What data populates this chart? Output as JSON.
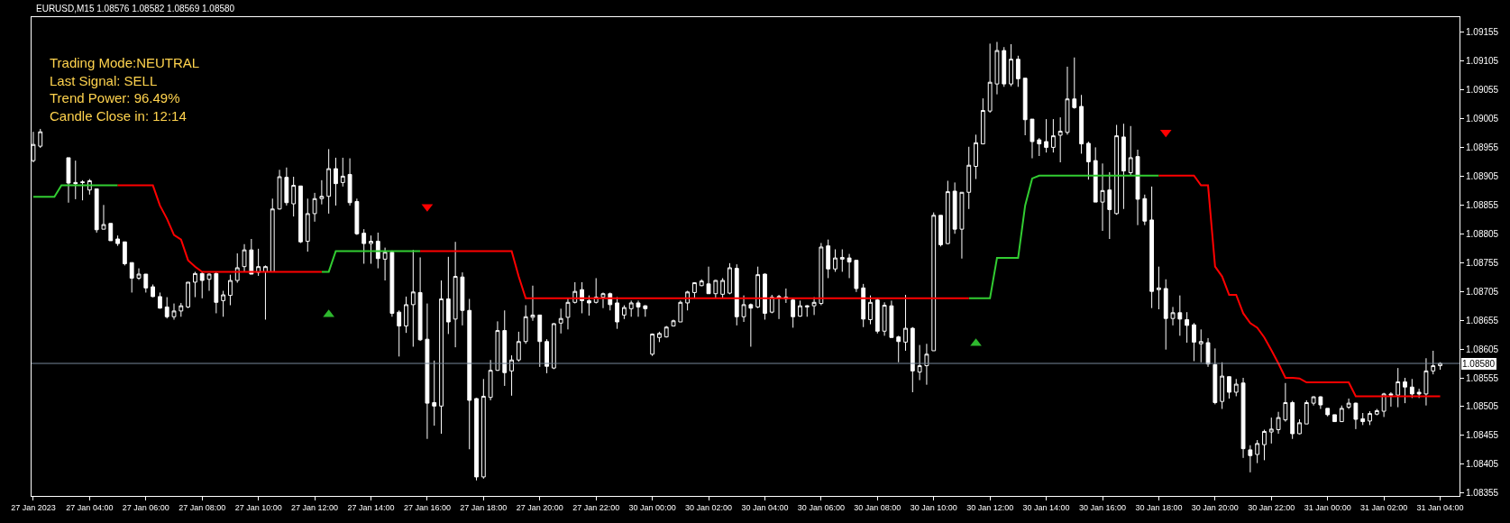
{
  "chart_data": {
    "type": "candlestick",
    "title": "EURUSD,M15 1.08576 1.08582 1.08569 1.08580",
    "annotations": [
      "Trading Mode:NEUTRAL",
      "Last Signal: SELL",
      "Trend Power: 96.49%",
      "Candle Close in: 12:14"
    ],
    "categories": [
      "27 Jan 2023",
      null,
      null,
      null,
      null,
      null,
      null,
      null,
      "27 Jan 04:00",
      null,
      null,
      null,
      null,
      null,
      null,
      null,
      "27 Jan 06:00",
      null,
      null,
      null,
      null,
      null,
      null,
      null,
      "27 Jan 08:00",
      null,
      null,
      null,
      null,
      null,
      null,
      null,
      "27 Jan 10:00",
      null,
      null,
      null,
      null,
      null,
      null,
      null,
      "27 Jan 12:00",
      null,
      null,
      null,
      null,
      null,
      null,
      null,
      "27 Jan 14:00",
      null,
      null,
      null,
      null,
      null,
      null,
      null,
      "27 Jan 16:00",
      null,
      null,
      null,
      null,
      null,
      null,
      null,
      "27 Jan 18:00",
      null,
      null,
      null,
      null,
      null,
      null,
      null,
      "27 Jan 20:00",
      null,
      null,
      null,
      null,
      null,
      null,
      null,
      "27 Jan 22:00",
      null,
      null,
      null,
      null,
      null,
      null,
      null,
      "30 Jan 00:00",
      null,
      null,
      null,
      null,
      null,
      null,
      null,
      "30 Jan 02:00",
      null,
      null,
      null,
      null,
      null,
      null,
      null,
      "30 Jan 04:00",
      null,
      null,
      null,
      null,
      null,
      null,
      null,
      "30 Jan 06:00",
      null,
      null,
      null,
      null,
      null,
      null,
      null,
      "30 Jan 08:00",
      null,
      null,
      null,
      null,
      null,
      null,
      null,
      "30 Jan 10:00",
      null,
      null,
      null,
      null,
      null,
      null,
      null,
      "30 Jan 12:00",
      null,
      null,
      null,
      null,
      null,
      null,
      null,
      "30 Jan 14:00",
      null,
      null,
      null,
      null,
      null,
      null,
      null,
      "30 Jan 16:00",
      null,
      null,
      null,
      null,
      null,
      null,
      null,
      "30 Jan 18:00",
      null,
      null,
      null,
      null,
      null,
      null,
      null,
      "30 Jan 20:00",
      null,
      null,
      null,
      null,
      null,
      null,
      null,
      "30 Jan 22:00",
      null,
      null,
      null,
      null,
      null,
      null,
      null,
      "31 Jan 00:00",
      null,
      null,
      null,
      null,
      null,
      null,
      null,
      "31 Jan 02:00",
      null,
      null,
      null,
      null,
      null,
      null,
      null,
      "31 Jan 04:00"
    ],
    "color": "#ffffff",
    "ohlc": [
      [
        1.08932,
        1.08982,
        1.08929,
        1.0896
      ],
      [
        1.08957,
        1.08987,
        1.08954,
        1.08982
      ],
      null,
      null,
      null,
      [
        1.08937,
        1.08937,
        1.08859,
        1.08893
      ],
      [
        1.08894,
        1.08932,
        1.08865,
        1.08892
      ],
      [
        1.08895,
        1.08898,
        1.08863,
        1.08894
      ],
      [
        1.08881,
        1.089,
        1.08873,
        1.08897
      ],
      [
        1.08883,
        1.08883,
        1.08807,
        1.08812
      ],
      [
        1.08813,
        1.08855,
        1.08813,
        1.08821
      ],
      [
        1.08823,
        1.08823,
        1.08793,
        1.08793
      ],
      [
        1.08796,
        1.08802,
        1.08784,
        1.08788
      ],
      [
        1.08791,
        1.08791,
        1.0875,
        1.08753
      ],
      [
        1.08755,
        1.08755,
        1.08703,
        1.08728
      ],
      [
        1.08728,
        1.08745,
        1.08725,
        1.08735
      ],
      [
        1.08735,
        1.08735,
        1.08703,
        1.08711
      ],
      [
        1.08713,
        1.08717,
        1.08695,
        1.08696
      ],
      [
        1.08696,
        1.08703,
        1.08675,
        1.08676
      ],
      [
        1.08678,
        1.08695,
        1.08658,
        1.08661
      ],
      [
        1.08661,
        1.08684,
        1.08656,
        1.08671
      ],
      [
        1.08671,
        1.08685,
        1.08661,
        1.0868
      ],
      [
        1.08678,
        1.08721,
        1.08676,
        1.08721
      ],
      [
        1.08721,
        1.08739,
        1.08695,
        1.08736
      ],
      [
        1.08736,
        1.08739,
        1.08693,
        1.08724
      ],
      [
        1.08726,
        1.08736,
        1.08706,
        1.08735
      ],
      [
        1.08736,
        1.08738,
        1.08667,
        1.08686
      ],
      [
        1.08689,
        1.08706,
        1.08661,
        1.08699
      ],
      [
        1.08698,
        1.08734,
        1.08681,
        1.08724
      ],
      [
        1.08724,
        1.08771,
        1.0872,
        1.08746
      ],
      [
        1.08748,
        1.08787,
        1.08739,
        1.08777
      ],
      [
        1.08777,
        1.08796,
        1.08735,
        1.08735
      ],
      [
        1.08738,
        1.08779,
        1.08732,
        1.08748
      ],
      [
        1.08739,
        1.0875,
        1.08656,
        1.08748
      ],
      [
        1.08739,
        1.08866,
        1.08739,
        1.08848
      ],
      [
        1.08848,
        1.08916,
        1.08847,
        1.08904
      ],
      [
        1.08903,
        1.0892,
        1.08854,
        1.08859
      ],
      [
        1.08857,
        1.08904,
        1.08835,
        1.08889
      ],
      [
        1.08888,
        1.08888,
        1.08789,
        1.08791
      ],
      [
        1.08792,
        1.08866,
        1.08774,
        1.0884
      ],
      [
        1.0884,
        1.08876,
        1.08826,
        1.08866
      ],
      [
        1.08866,
        1.08898,
        1.08856,
        1.0887
      ],
      [
        1.0887,
        1.08952,
        1.0884,
        1.08918
      ],
      [
        1.08918,
        1.08937,
        1.08854,
        1.08892
      ],
      [
        1.08894,
        1.08937,
        1.08887,
        1.08905
      ],
      [
        1.08908,
        1.08936,
        1.08854,
        1.08859
      ],
      [
        1.08861,
        1.08866,
        1.08803,
        1.08805
      ],
      [
        1.08806,
        1.08813,
        1.08753,
        1.08788
      ],
      [
        1.08788,
        1.08802,
        1.08753,
        1.08792
      ],
      [
        1.08792,
        1.08807,
        1.08745,
        1.08762
      ],
      [
        1.08761,
        1.08781,
        1.08724,
        1.08773
      ],
      [
        1.08773,
        1.08776,
        1.08661,
        1.08667
      ],
      [
        1.08669,
        1.08672,
        1.08592,
        1.08645
      ],
      [
        1.08645,
        1.08696,
        1.08633,
        1.08682
      ],
      [
        1.08682,
        1.08777,
        1.08609,
        1.08704
      ],
      [
        1.08703,
        1.08764,
        1.08619,
        1.08621
      ],
      [
        1.08622,
        1.08684,
        1.08449,
        1.08511
      ],
      [
        1.08512,
        1.08585,
        1.08472,
        1.08506
      ],
      [
        1.08506,
        1.08724,
        1.08458,
        1.08692
      ],
      [
        1.08692,
        1.08765,
        1.08631,
        1.08652
      ],
      [
        1.08657,
        1.08791,
        1.08608,
        1.08731
      ],
      [
        1.0873,
        1.08738,
        1.08646,
        1.08672
      ],
      [
        1.08672,
        1.08692,
        1.08431,
        1.08516
      ],
      [
        1.08519,
        1.0852,
        1.08377,
        1.08383
      ],
      [
        1.08383,
        1.08553,
        1.0838,
        1.08523
      ],
      [
        1.08521,
        1.08586,
        1.08516,
        1.08568
      ],
      [
        1.08568,
        1.08653,
        1.08567,
        1.08637
      ],
      [
        1.08637,
        1.08672,
        1.08541,
        1.08564
      ],
      [
        1.08567,
        1.08594,
        1.08524,
        1.08586
      ],
      [
        1.08586,
        1.08635,
        1.08583,
        1.08618
      ],
      [
        1.08618,
        1.08681,
        1.08614,
        1.08661
      ],
      [
        1.0866,
        1.08715,
        1.08654,
        1.08664
      ],
      [
        1.08664,
        1.08664,
        1.08574,
        1.08618
      ],
      [
        1.08618,
        1.08622,
        1.08563,
        1.08575
      ],
      [
        1.08572,
        1.0865,
        1.0857,
        1.08649
      ],
      [
        1.0865,
        1.08675,
        1.08632,
        1.08658
      ],
      [
        1.0866,
        1.08693,
        1.08639,
        1.08686
      ],
      [
        1.08686,
        1.08721,
        1.08684,
        1.08705
      ],
      [
        1.08708,
        1.08721,
        1.08667,
        1.08689
      ],
      [
        1.08689,
        1.08698,
        1.08663,
        1.08685
      ],
      [
        1.08686,
        1.08728,
        1.08684,
        1.08695
      ],
      [
        1.08695,
        1.08703,
        1.08676,
        1.08701
      ],
      [
        1.08701,
        1.08703,
        1.08672,
        1.08682
      ],
      [
        1.08685,
        1.08695,
        1.0864,
        1.08652
      ],
      [
        1.08664,
        1.08681,
        1.08657,
        1.08677
      ],
      [
        1.08675,
        1.08689,
        1.08661,
        1.08685
      ],
      [
        1.08685,
        1.08689,
        1.08661,
        1.08678
      ],
      [
        1.0868,
        1.08681,
        1.08661,
        1.08675
      ],
      [
        1.08596,
        1.08632,
        1.08593,
        1.08631
      ],
      [
        1.08625,
        1.08635,
        1.08617,
        1.08632
      ],
      [
        1.08626,
        1.08645,
        1.08625,
        1.08643
      ],
      [
        1.08645,
        1.08656,
        1.08645,
        1.08654
      ],
      [
        1.08652,
        1.08689,
        1.08652,
        1.08686
      ],
      [
        1.08685,
        1.08706,
        1.08672,
        1.08704
      ],
      [
        1.08703,
        1.08721,
        1.08693,
        1.0872
      ],
      [
        1.08715,
        1.08726,
        1.08714,
        1.08723
      ],
      [
        1.08718,
        1.08748,
        1.08701,
        1.08701
      ],
      [
        1.08701,
        1.08725,
        1.08693,
        1.08724
      ],
      [
        1.087,
        1.08728,
        1.08693,
        1.08724
      ],
      [
        1.08702,
        1.08754,
        1.087,
        1.08746
      ],
      [
        1.08745,
        1.08752,
        1.08646,
        1.08661
      ],
      [
        1.08661,
        1.08698,
        1.08652,
        1.08682
      ],
      [
        1.08682,
        1.08684,
        1.08609,
        1.08676
      ],
      [
        1.08678,
        1.08748,
        1.08676,
        1.08734
      ],
      [
        1.08735,
        1.08736,
        1.08656,
        1.08667
      ],
      [
        1.08669,
        1.08699,
        1.08667,
        1.08695
      ],
      [
        1.08694,
        1.08699,
        1.08657,
        1.08696
      ],
      [
        1.08692,
        1.0871,
        1.08685,
        1.08695
      ],
      [
        1.0869,
        1.08693,
        1.08642,
        1.08661
      ],
      [
        1.08662,
        1.08689,
        1.08661,
        1.0868
      ],
      [
        1.08678,
        1.08681,
        1.08661,
        1.0868
      ],
      [
        1.0868,
        1.08695,
        1.08664,
        1.08686
      ],
      [
        1.08684,
        1.08789,
        1.08681,
        1.08782
      ],
      [
        1.08784,
        1.08795,
        1.08728,
        1.08744
      ],
      [
        1.08744,
        1.08778,
        1.08739,
        1.08763
      ],
      [
        1.08761,
        1.08778,
        1.08739,
        1.08764
      ],
      [
        1.08763,
        1.0877,
        1.08728,
        1.08756
      ],
      [
        1.08759,
        1.08759,
        1.08704,
        1.0871
      ],
      [
        1.08711,
        1.08718,
        1.08643,
        1.08657
      ],
      [
        1.08656,
        1.08698,
        1.08648,
        1.08686
      ],
      [
        1.0869,
        1.08693,
        1.08632,
        1.08636
      ],
      [
        1.08636,
        1.08686,
        1.08628,
        1.08681
      ],
      [
        1.0868,
        1.08689,
        1.08625,
        1.08625
      ],
      [
        1.08626,
        1.08628,
        1.08582,
        1.08618
      ],
      [
        1.08617,
        1.08699,
        1.08602,
        1.08641
      ],
      [
        1.08641,
        1.08643,
        1.0853,
        1.08567
      ],
      [
        1.08565,
        1.08612,
        1.08551,
        1.08576
      ],
      [
        1.08576,
        1.08614,
        1.08543,
        1.08596
      ],
      [
        1.08602,
        1.08842,
        1.08602,
        1.08837
      ],
      [
        1.08837,
        1.08837,
        1.08783,
        1.08786
      ],
      [
        1.08788,
        1.08897,
        1.08787,
        1.08878
      ],
      [
        1.08879,
        1.08894,
        1.08805,
        1.08813
      ],
      [
        1.08813,
        1.08877,
        1.08762,
        1.08877
      ],
      [
        1.08877,
        1.08956,
        1.08848,
        1.08924
      ],
      [
        1.08922,
        1.08977,
        1.089,
        1.08963
      ],
      [
        1.08961,
        1.0904,
        1.08961,
        1.09019
      ],
      [
        1.09018,
        1.09135,
        1.09015,
        1.09068
      ],
      [
        1.09065,
        1.09138,
        1.09047,
        1.09123
      ],
      [
        1.09123,
        1.09129,
        1.0906,
        1.09065
      ],
      [
        1.09065,
        1.09134,
        1.09061,
        1.09108
      ],
      [
        1.09108,
        1.09114,
        1.0906,
        1.09074
      ],
      [
        1.09075,
        1.09075,
        1.08976,
        1.09003
      ],
      [
        1.09004,
        1.09004,
        1.08936,
        1.08965
      ],
      [
        1.08968,
        1.08971,
        1.0894,
        1.08961
      ],
      [
        1.08965,
        1.09004,
        1.08946,
        1.08955
      ],
      [
        1.08955,
        1.09004,
        1.08946,
        1.08975
      ],
      [
        1.08976,
        1.09007,
        1.08929,
        1.08983
      ],
      [
        1.08981,
        1.09095,
        1.08977,
        1.09039
      ],
      [
        1.09039,
        1.09111,
        1.09022,
        1.09024
      ],
      [
        1.09026,
        1.09046,
        1.08944,
        1.08961
      ],
      [
        1.08962,
        1.08965,
        1.08899,
        1.0893
      ],
      [
        1.08932,
        1.08955,
        1.0886,
        1.0886
      ],
      [
        1.0886,
        1.08927,
        1.0881,
        1.0888
      ],
      [
        1.08881,
        1.08912,
        1.08796,
        1.08847
      ],
      [
        1.0884,
        1.08994,
        1.08838,
        1.08975
      ],
      [
        1.08973,
        1.08996,
        1.08848,
        1.08914
      ],
      [
        1.08911,
        1.08992,
        1.08907,
        1.08937
      ],
      [
        1.08939,
        1.08951,
        1.0882,
        1.08865
      ],
      [
        1.08866,
        1.08873,
        1.0882,
        1.08827
      ],
      [
        1.08829,
        1.08887,
        1.08676,
        1.08705
      ],
      [
        1.08708,
        1.08748,
        1.08674,
        1.08711
      ],
      [
        1.0871,
        1.08726,
        1.08604,
        1.08658
      ],
      [
        1.08658,
        1.08678,
        1.08646,
        1.08668
      ],
      [
        1.08668,
        1.08698,
        1.08628,
        1.08657
      ],
      [
        1.08656,
        1.08669,
        1.08616,
        1.08646
      ],
      [
        1.08647,
        1.0865,
        1.08584,
        1.08617
      ],
      [
        1.08614,
        1.08639,
        1.08582,
        1.08618
      ],
      [
        1.08616,
        1.08624,
        1.08574,
        1.08579
      ],
      [
        1.08578,
        1.08606,
        1.08509,
        1.08512
      ],
      [
        1.08514,
        1.08582,
        1.08501,
        1.08558
      ],
      [
        1.08557,
        1.08557,
        1.08519,
        1.0853
      ],
      [
        1.0853,
        1.08553,
        1.08523,
        1.08544
      ],
      [
        1.08546,
        1.08555,
        1.08416,
        1.08432
      ],
      [
        1.0843,
        1.08438,
        1.08391,
        1.0842
      ],
      [
        1.08422,
        1.08447,
        1.08407,
        1.08441
      ],
      [
        1.08439,
        1.08465,
        1.08412,
        1.08462
      ],
      [
        1.08461,
        1.08486,
        1.08441,
        1.08466
      ],
      [
        1.08465,
        1.08496,
        1.08458,
        1.08486
      ],
      [
        1.08482,
        1.08546,
        1.08479,
        1.08512
      ],
      [
        1.08512,
        1.08515,
        1.08449,
        1.08458
      ],
      [
        1.08458,
        1.08483,
        1.08457,
        1.08477
      ],
      [
        1.08475,
        1.08516,
        1.08475,
        1.08512
      ],
      [
        1.08511,
        1.08523,
        1.08507,
        1.08522
      ],
      [
        1.08522,
        1.08523,
        1.08501,
        1.08508
      ],
      [
        1.08502,
        1.08502,
        1.08488,
        1.08491
      ],
      [
        1.08491,
        1.08491,
        1.08479,
        1.08479
      ],
      [
        1.08479,
        1.08507,
        1.08479,
        1.08502
      ],
      [
        1.08504,
        1.08519,
        1.08501,
        1.08511
      ],
      [
        1.08511,
        1.08512,
        1.08466,
        1.08483
      ],
      [
        1.08484,
        1.08494,
        1.08473,
        1.08479
      ],
      [
        1.0848,
        1.08497,
        1.08473,
        1.08493
      ],
      [
        1.08492,
        1.08501,
        1.0849,
        1.08498
      ],
      [
        1.08497,
        1.08529,
        1.08487,
        1.08527
      ],
      [
        1.08527,
        1.0853,
        1.08505,
        1.08525
      ],
      [
        1.08525,
        1.08572,
        1.08504,
        1.08548
      ],
      [
        1.08548,
        1.08555,
        1.08511,
        1.08539
      ],
      [
        1.08539,
        1.08553,
        1.0852,
        1.08527
      ],
      [
        1.0853,
        1.08536,
        1.0852,
        1.08527
      ],
      [
        1.08527,
        1.08589,
        1.08507,
        1.08567
      ],
      [
        1.08567,
        1.08602,
        1.08561,
        1.08576
      ],
      [
        1.08576,
        1.08582,
        1.08569,
        1.0858
      ]
    ],
    "series": [
      {
        "type": "line",
        "color": "#32cd32",
        "values": [
          1.08869,
          1.08869,
          1.08869,
          1.08869,
          1.08889,
          1.08889,
          1.08889,
          1.08889,
          1.08889,
          1.08889,
          1.08889,
          1.08889,
          1.08889,
          null,
          null,
          null,
          null,
          null,
          null,
          null,
          null,
          null,
          null,
          null,
          null,
          null,
          null,
          null,
          null,
          null,
          null,
          null,
          null,
          null,
          null,
          null,
          null,
          null,
          null,
          null,
          null,
          1.08739,
          1.08739,
          1.08775,
          1.08775,
          1.08775,
          1.08775,
          1.08775,
          1.08775,
          1.08775,
          1.08775,
          1.08775,
          1.08775,
          1.08775,
          1.08775,
          1.08775,
          null,
          null,
          null,
          null,
          null,
          null,
          null,
          null,
          null,
          null,
          null,
          null,
          null,
          null,
          null,
          null,
          null,
          null,
          null,
          null,
          null,
          null,
          null,
          null,
          null,
          null,
          null,
          null,
          null,
          null,
          null,
          null,
          null,
          null,
          null,
          null,
          null,
          null,
          null,
          null,
          null,
          null,
          null,
          null,
          null,
          null,
          null,
          null,
          null,
          null,
          null,
          null,
          null,
          null,
          null,
          null,
          null,
          null,
          null,
          null,
          null,
          null,
          null,
          null,
          null,
          null,
          null,
          null,
          null,
          null,
          null,
          null,
          null,
          null,
          null,
          null,
          null,
          1.08693,
          1.08693,
          1.08693,
          1.08693,
          1.08763,
          1.08763,
          1.08763,
          1.08763,
          1.08854,
          1.08901,
          1.08906,
          1.08906,
          1.08906,
          1.08906,
          1.08906,
          1.08906,
          1.08906,
          1.08906,
          1.08906,
          1.08906,
          1.08906,
          1.08906,
          1.08906,
          1.08906,
          1.08906,
          1.08906,
          1.08906,
          1.08906,
          null,
          null,
          null,
          null,
          null,
          null,
          null,
          null,
          null,
          null,
          null,
          null,
          null,
          null,
          null,
          null,
          null,
          null,
          null,
          null,
          null,
          null,
          null,
          null,
          null,
          null,
          null,
          null,
          null,
          null,
          null,
          null,
          null,
          null,
          null,
          null,
          null,
          null,
          null,
          null
        ]
      },
      {
        "type": "line",
        "color": "#ff0000",
        "values": [
          null,
          null,
          null,
          null,
          null,
          null,
          null,
          null,
          null,
          null,
          null,
          null,
          1.08889,
          1.08889,
          1.08889,
          1.08889,
          1.08889,
          1.08889,
          1.08854,
          1.08831,
          1.08803,
          1.08795,
          1.08759,
          1.08748,
          1.08739,
          1.08739,
          1.08739,
          1.08739,
          1.08739,
          1.08739,
          1.08739,
          1.08739,
          1.08739,
          1.08739,
          1.08739,
          1.08739,
          1.08739,
          1.08739,
          1.08739,
          1.08739,
          1.08739,
          1.08739,
          null,
          null,
          null,
          null,
          null,
          null,
          null,
          null,
          null,
          null,
          null,
          null,
          null,
          1.08775,
          1.08775,
          1.08775,
          1.08775,
          1.08775,
          1.08775,
          1.08775,
          1.08775,
          1.08775,
          1.08775,
          1.08775,
          1.08775,
          1.08775,
          1.08775,
          1.08731,
          1.08693,
          1.08693,
          1.08693,
          1.08693,
          1.08693,
          1.08693,
          1.08693,
          1.08693,
          1.08693,
          1.08693,
          1.08693,
          1.08693,
          1.08693,
          1.08693,
          1.08693,
          1.08693,
          1.08693,
          1.08693,
          1.08693,
          1.08693,
          1.08693,
          1.08693,
          1.08693,
          1.08693,
          1.08693,
          1.08693,
          1.08693,
          1.08693,
          1.08693,
          1.08693,
          1.08693,
          1.08693,
          1.08693,
          1.08693,
          1.08693,
          1.08693,
          1.08693,
          1.08693,
          1.08693,
          1.08693,
          1.08693,
          1.08693,
          1.08693,
          1.08693,
          1.08693,
          1.08693,
          1.08693,
          1.08693,
          1.08693,
          1.08693,
          1.08693,
          1.08693,
          1.08693,
          1.08693,
          1.08693,
          1.08693,
          1.08693,
          1.08693,
          1.08693,
          1.08693,
          1.08693,
          1.08693,
          1.08693,
          1.08693,
          null,
          null,
          null,
          null,
          null,
          null,
          null,
          null,
          null,
          null,
          null,
          null,
          null,
          null,
          null,
          null,
          null,
          null,
          null,
          null,
          null,
          null,
          null,
          null,
          null,
          null,
          1.08906,
          1.08906,
          1.08906,
          1.08906,
          1.08906,
          1.08906,
          1.08889,
          1.08889,
          1.08748,
          1.08731,
          1.08699,
          1.08699,
          1.08667,
          1.0865,
          1.08642,
          1.08625,
          1.08603,
          1.0858,
          1.08555,
          1.08555,
          1.08554,
          1.08547,
          1.08547,
          1.08547,
          1.08547,
          1.08547,
          1.08547,
          1.08547,
          1.08523,
          1.08523,
          1.08523,
          1.08523,
          1.08523,
          1.08523,
          1.08523,
          1.08523,
          1.08523,
          1.08523,
          1.08523,
          1.08523,
          1.08523
        ]
      },
      {
        "type": "scatter",
        "marker": "triangle",
        "color": "#2eb82e",
        "values": [
          null,
          null,
          null,
          null,
          null,
          null,
          null,
          null,
          null,
          null,
          null,
          null,
          null,
          null,
          null,
          null,
          null,
          null,
          null,
          null,
          null,
          null,
          null,
          null,
          null,
          null,
          null,
          null,
          null,
          null,
          null,
          null,
          null,
          null,
          null,
          null,
          null,
          null,
          null,
          null,
          null,
          null,
          1.08665,
          null,
          null,
          null,
          null,
          null,
          null,
          null,
          null,
          null,
          null,
          null,
          null,
          null,
          null,
          null,
          null,
          null,
          null,
          null,
          null,
          null,
          null,
          null,
          null,
          null,
          null,
          null,
          null,
          null,
          null,
          null,
          null,
          null,
          null,
          null,
          null,
          null,
          null,
          null,
          null,
          null,
          null,
          null,
          null,
          null,
          null,
          null,
          null,
          null,
          null,
          null,
          null,
          null,
          null,
          null,
          null,
          null,
          null,
          null,
          null,
          null,
          null,
          null,
          null,
          null,
          null,
          null,
          null,
          null,
          null,
          null,
          null,
          null,
          null,
          null,
          null,
          null,
          null,
          null,
          null,
          null,
          null,
          null,
          null,
          null,
          null,
          null,
          null,
          null,
          null,
          null,
          1.08615,
          null,
          null,
          null,
          null,
          null,
          null,
          null,
          null,
          null,
          null,
          null,
          null,
          null,
          null,
          null,
          null,
          null,
          null,
          null,
          null,
          null,
          null,
          null,
          null,
          null,
          null,
          null,
          null,
          null,
          null,
          null,
          null,
          null,
          null,
          null,
          null,
          null,
          null,
          null,
          null,
          null,
          null,
          null,
          null,
          null,
          null,
          null,
          null,
          null,
          null,
          null,
          null,
          null,
          null,
          null,
          null,
          null,
          null,
          null,
          null,
          null,
          null,
          null,
          null,
          null,
          null
        ]
      },
      {
        "type": "scatter",
        "marker": "triangle-down",
        "color": "#ff0000",
        "values": [
          null,
          null,
          null,
          null,
          null,
          null,
          null,
          null,
          null,
          null,
          null,
          null,
          null,
          null,
          null,
          null,
          null,
          null,
          null,
          null,
          null,
          null,
          null,
          null,
          null,
          null,
          null,
          null,
          null,
          null,
          null,
          null,
          null,
          null,
          null,
          null,
          null,
          null,
          null,
          null,
          null,
          null,
          null,
          null,
          null,
          null,
          null,
          null,
          null,
          null,
          null,
          null,
          null,
          null,
          null,
          null,
          1.08852,
          null,
          null,
          null,
          null,
          null,
          null,
          null,
          null,
          null,
          null,
          null,
          null,
          null,
          null,
          null,
          null,
          null,
          null,
          null,
          null,
          null,
          null,
          null,
          null,
          null,
          null,
          null,
          null,
          null,
          null,
          null,
          null,
          null,
          null,
          null,
          null,
          null,
          null,
          null,
          null,
          null,
          null,
          null,
          null,
          null,
          null,
          null,
          null,
          null,
          null,
          null,
          null,
          null,
          null,
          null,
          null,
          null,
          null,
          null,
          null,
          null,
          null,
          null,
          null,
          null,
          null,
          null,
          null,
          null,
          null,
          null,
          null,
          null,
          null,
          null,
          null,
          null,
          null,
          null,
          null,
          null,
          null,
          null,
          null,
          null,
          null,
          null,
          null,
          null,
          null,
          null,
          null,
          null,
          null,
          null,
          null,
          null,
          null,
          null,
          null,
          null,
          null,
          null,
          null,
          1.08981,
          null,
          null,
          null,
          null,
          null,
          null,
          null,
          null,
          null,
          null,
          null,
          null,
          null,
          null,
          null,
          null,
          null,
          null,
          null,
          null,
          null,
          null,
          null,
          null,
          null,
          null,
          null,
          null,
          null,
          null,
          null,
          null,
          null,
          null,
          null,
          null,
          null,
          null,
          null
        ]
      }
    ],
    "ref_lines": [
      {
        "axis": "y",
        "value": 1.0858,
        "label": "1.08580",
        "color": "#778899"
      }
    ],
    "ylim": [
      1.0835,
      1.09181
    ],
    "yticks": [
      1.09155,
      1.09105,
      1.09055,
      1.09005,
      1.08955,
      1.08905,
      1.08855,
      1.08805,
      1.08755,
      1.08705,
      1.08655,
      1.08605,
      1.08555,
      1.08505,
      1.08455,
      1.08405,
      1.08355
    ]
  }
}
